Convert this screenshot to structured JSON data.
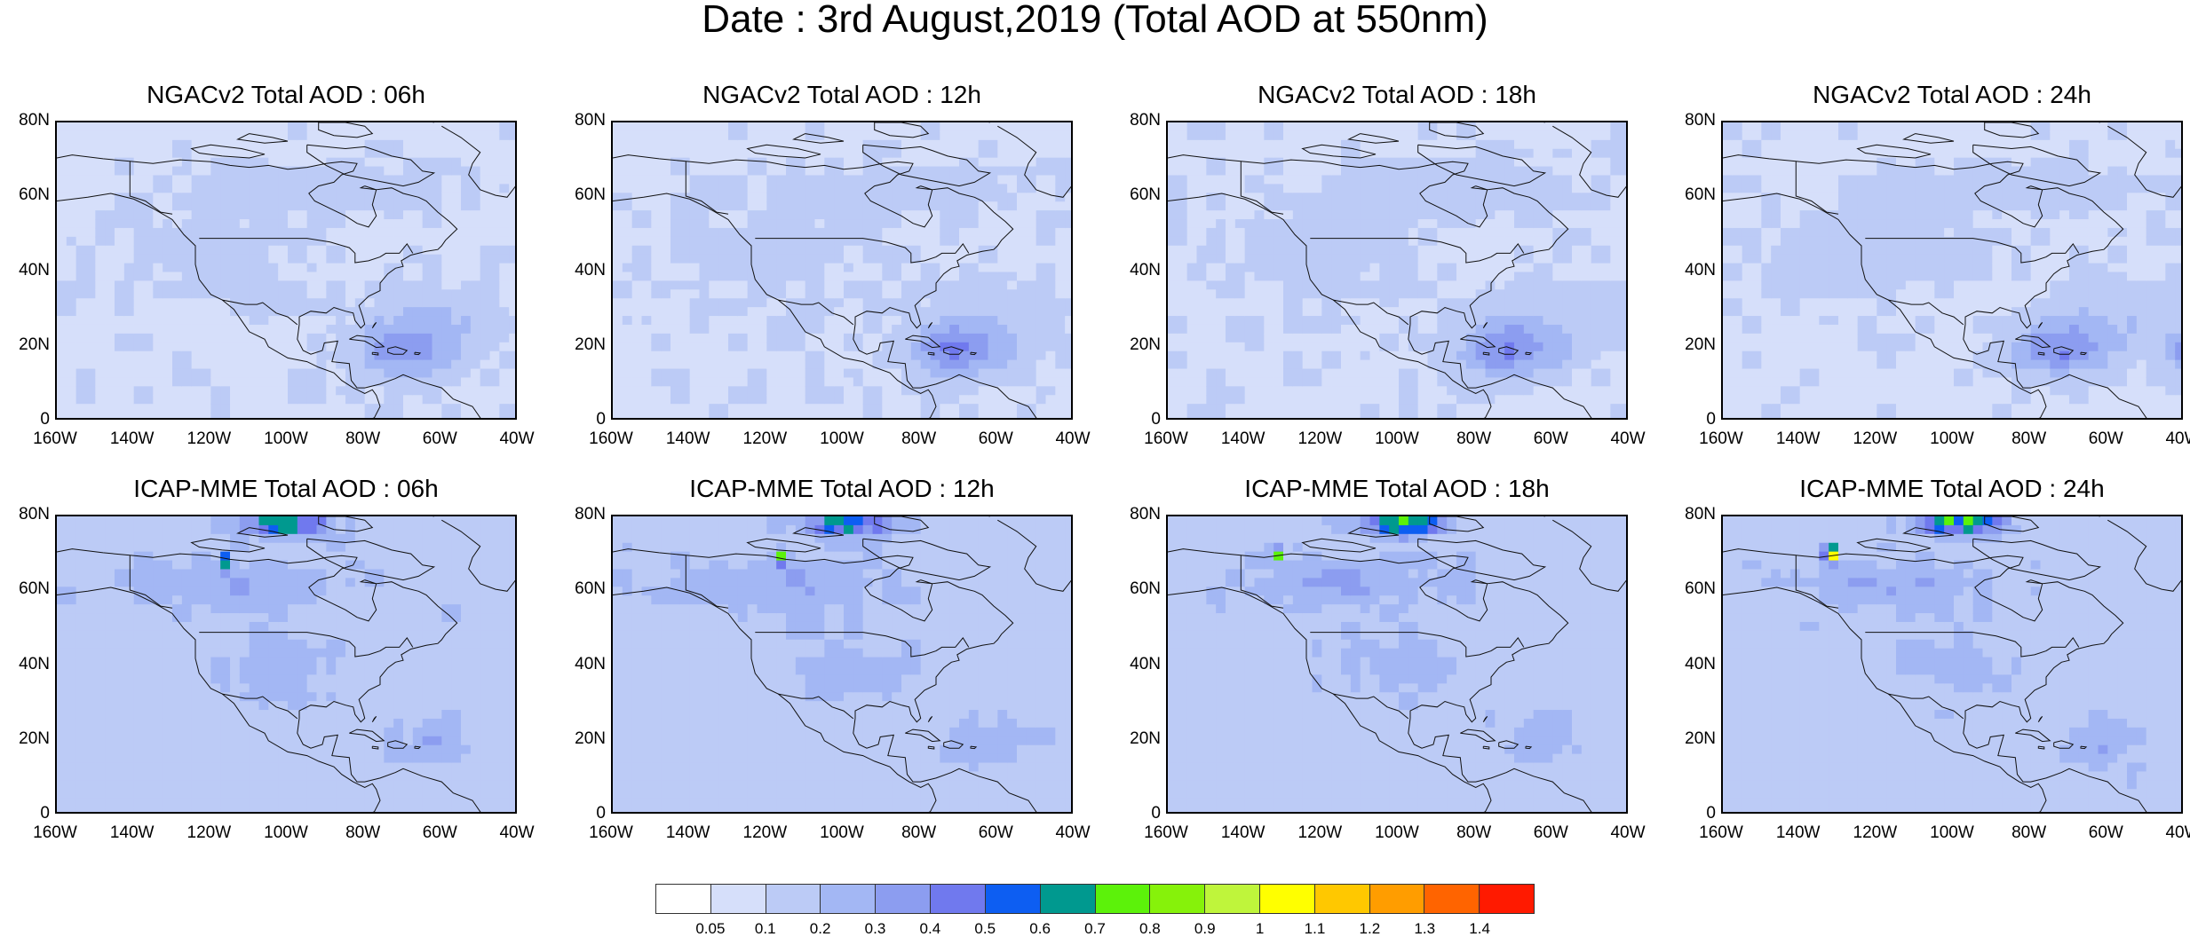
{
  "figure": {
    "title": "Date : 3rd August,2019 (Total AOD at 550nm)"
  },
  "panels": [
    {
      "title": "NGACv2 Total AOD : 06h",
      "model": "NGAC",
      "hour": 6
    },
    {
      "title": "NGACv2 Total AOD : 12h",
      "model": "NGAC",
      "hour": 12
    },
    {
      "title": "NGACv2 Total AOD : 18h",
      "model": "NGAC",
      "hour": 18
    },
    {
      "title": "NGACv2 Total AOD : 24h",
      "model": "NGAC",
      "hour": 24
    },
    {
      "title": "ICAP-MME Total AOD : 06h",
      "model": "ICAP",
      "hour": 6
    },
    {
      "title": "ICAP-MME Total AOD : 12h",
      "model": "ICAP",
      "hour": 12
    },
    {
      "title": "ICAP-MME Total AOD : 18h",
      "model": "ICAP",
      "hour": 18
    },
    {
      "title": "ICAP-MME Total AOD : 24h",
      "model": "ICAP",
      "hour": 24
    }
  ],
  "axes": {
    "lat_labels": [
      "80N",
      "60N",
      "40N",
      "20N",
      "0"
    ],
    "lon_labels": [
      "160W",
      "140W",
      "120W",
      "100W",
      "80W",
      "60W",
      "40W"
    ],
    "lat_range": [
      0,
      80
    ],
    "lon_range": [
      -160,
      -40
    ]
  },
  "colorbar": {
    "labels": [
      "0.05",
      "0.1",
      "0.2",
      "0.3",
      "0.4",
      "0.5",
      "0.6",
      "0.7",
      "0.8",
      "0.9",
      "1",
      "1.1",
      "1.2",
      "1.3",
      "1.4"
    ],
    "colors": [
      "#ffffff",
      "#d6dffa",
      "#bccbf6",
      "#a3b7f4",
      "#8c9df0",
      "#7079ee",
      "#0d5ef2",
      "#00998f",
      "#5cf20a",
      "#86f20a",
      "#bff53b",
      "#ffff00",
      "#ffc800",
      "#ff9d00",
      "#ff6400",
      "#ff1a00"
    ]
  }
}
